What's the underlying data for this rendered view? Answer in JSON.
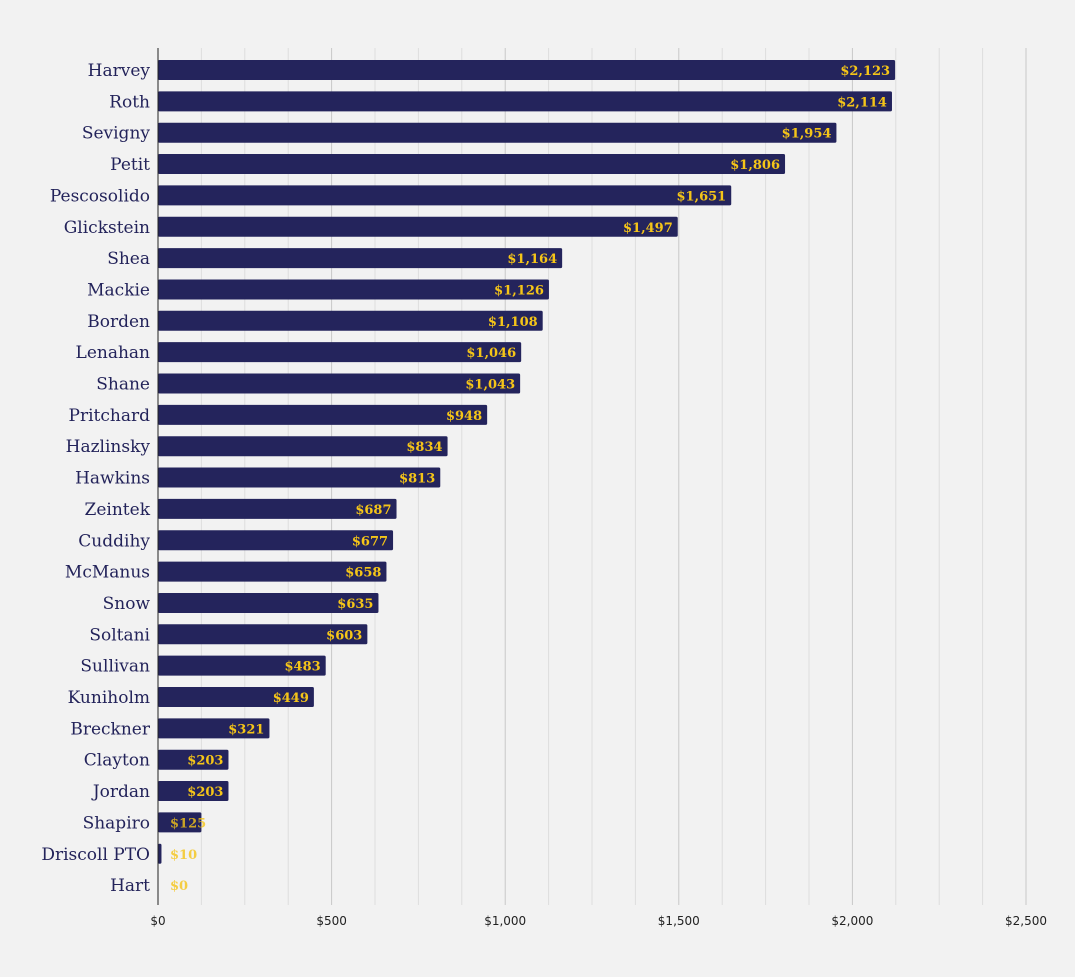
{
  "colors": {
    "bar": "#24245c",
    "value_label": "#f5c518",
    "category_label": "#23235a",
    "grid_major": "#c8c8c8",
    "grid_minor": "#dddddd",
    "background": "#f2f2f2"
  },
  "chart_data": {
    "type": "bar",
    "orientation": "horizontal",
    "title": "",
    "xlabel": "",
    "ylabel": "",
    "xlim": [
      0,
      2500
    ],
    "tick_values": [
      0,
      500,
      1000,
      1500,
      2000,
      2500
    ],
    "tick_labels": [
      "$0",
      "$500",
      "$1,000",
      "$1,500",
      "$2,000",
      "$2,500"
    ],
    "grid": true,
    "legend": "none",
    "categories": [
      "Harvey",
      "Roth",
      "Sevigny",
      "Petit",
      "Pescosolido",
      "Glickstein",
      "Shea",
      "Mackie",
      "Borden",
      "Lenahan",
      "Shane",
      "Pritchard",
      "Hazlinsky",
      "Hawkins",
      "Zeintek",
      "Cuddihy",
      "McManus",
      "Snow",
      "Soltani",
      "Sullivan",
      "Kuniholm",
      "Breckner",
      "Clayton",
      "Jordan",
      "Shapiro",
      "Driscoll PTO",
      "Hart"
    ],
    "values": [
      2123,
      2114,
      1954,
      1806,
      1651,
      1497,
      1164,
      1126,
      1108,
      1046,
      1043,
      948,
      834,
      813,
      687,
      677,
      658,
      635,
      603,
      483,
      449,
      321,
      203,
      203,
      125,
      10,
      0
    ],
    "value_labels": [
      "$2,123",
      "$2,114",
      "$1,954",
      "$1,806",
      "$1,651",
      "$1,497",
      "$1,164",
      "$1,126",
      "$1,108",
      "$1,046",
      "$1,043",
      "$948",
      "$834",
      "$813",
      "$687",
      "$677",
      "$658",
      "$635",
      "$603",
      "$483",
      "$449",
      "$321",
      "$203",
      "$203",
      "$125",
      "$10",
      "$0"
    ]
  }
}
